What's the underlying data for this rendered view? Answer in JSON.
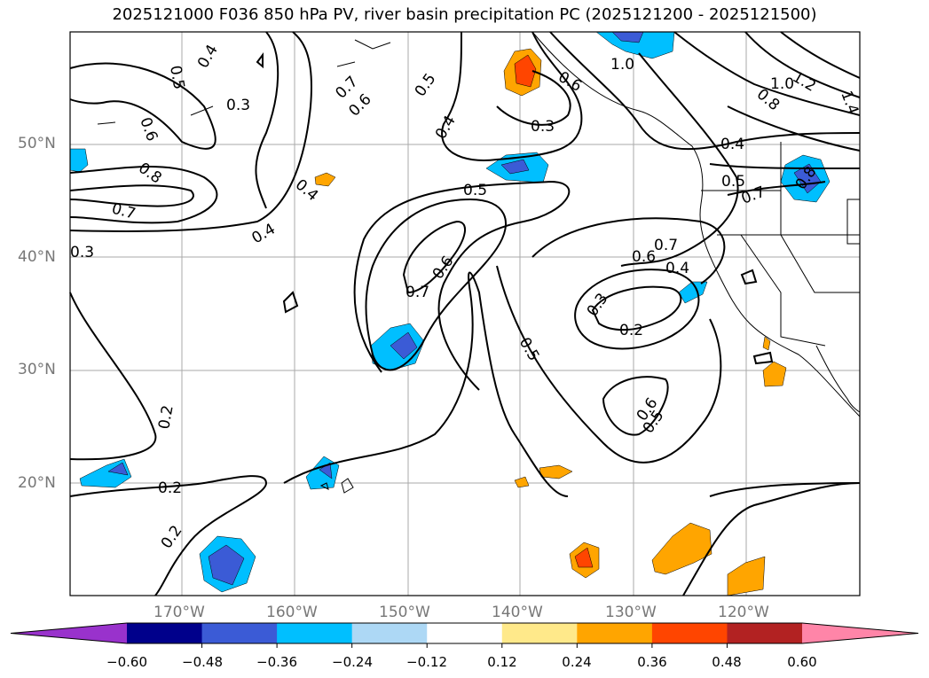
{
  "title": "2025121000 F036 850 hPa PV, river basin precipitation PC (2025121200 - 2025121500)",
  "axes": {
    "lat_labels": [
      "50°N",
      "40°N",
      "30°N",
      "20°N"
    ],
    "lon_labels": [
      "170°W",
      "160°W",
      "150°W",
      "140°W",
      "130°W",
      "120°W"
    ]
  },
  "colorbar": {
    "ticks": [
      "−0.60",
      "−0.48",
      "−0.36",
      "−0.24",
      "−0.12",
      "0.12",
      "0.24",
      "0.36",
      "0.48",
      "0.60"
    ],
    "colors": [
      "#9932cc",
      "#00008b",
      "#3b5bd6",
      "#00bfff",
      "#add8f5",
      "#ffffff",
      "#ffe98a",
      "#ffa500",
      "#ff4500",
      "#b22222",
      "#ff85a8"
    ]
  },
  "contour_labels": [
    "0.5",
    "0.4",
    "0.3",
    "0.6",
    "0.8",
    "0.7",
    "0.3",
    "0.4",
    "0.6",
    "0.7",
    "0.5",
    "0.4",
    "0.3",
    "0.6",
    "1.0",
    "1.0",
    "1.2",
    "1.4",
    "0.8",
    "0.5",
    "0.4",
    "0.5",
    "0.4",
    "0.7",
    "0.6",
    "0.4",
    "0.6",
    "0.7",
    "0.5",
    "0.3",
    "0.2",
    "0.5",
    "0.6",
    "0.7",
    "0.2",
    "0.2",
    "0.2",
    "0.8"
  ],
  "map_layers": [
    "land-coastline",
    "state-borders",
    "potential-vorticity-contours",
    "precipitation-pc-shading"
  ]
}
